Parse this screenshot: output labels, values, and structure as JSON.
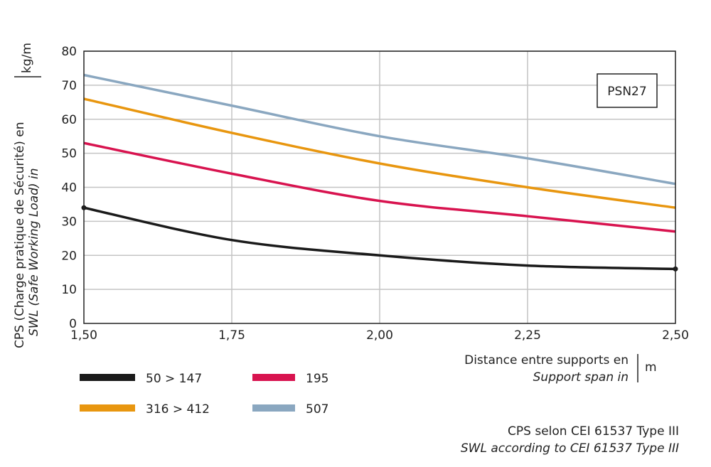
{
  "chart_data": {
    "type": "line",
    "x": [
      1.5,
      1.75,
      2.0,
      2.25,
      2.5
    ],
    "xtick_labels": [
      "1,50",
      "1,75",
      "2,00",
      "2,25",
      "2,50"
    ],
    "xlim": [
      1.5,
      2.5
    ],
    "ylim": [
      0,
      80
    ],
    "yticks": [
      0,
      10,
      20,
      30,
      40,
      50,
      60,
      70,
      80
    ],
    "grid": true,
    "ylabel_line1": "CPS (Charge pratique de Sécurité) en",
    "ylabel_line2": "SWL (Safe Working Load) in",
    "yunit": "kg/m",
    "xlabel_line1": "Distance entre supports en",
    "xlabel_line2": "Support span in",
    "xunit": "m",
    "annotation_box": "PSN27",
    "footnote_line1": "CPS selon CEI 61537 Type III",
    "footnote_line2": "SWL according to CEI 61537 Type III",
    "legend_placement": "bottom-left",
    "series": [
      {
        "name": "50 > 147",
        "color": "#1a1a1a",
        "values": [
          34,
          24.5,
          20,
          17,
          16
        ],
        "markers_at_ends": true
      },
      {
        "name": "195",
        "color": "#d8134f",
        "values": [
          53,
          44,
          36,
          31.5,
          27
        ]
      },
      {
        "name": "316 > 412",
        "color": "#e8960f",
        "values": [
          66,
          56,
          47,
          40,
          34
        ]
      },
      {
        "name": "507",
        "color": "#8aa7c0",
        "values": [
          73,
          64,
          55,
          48.5,
          41
        ]
      }
    ]
  }
}
